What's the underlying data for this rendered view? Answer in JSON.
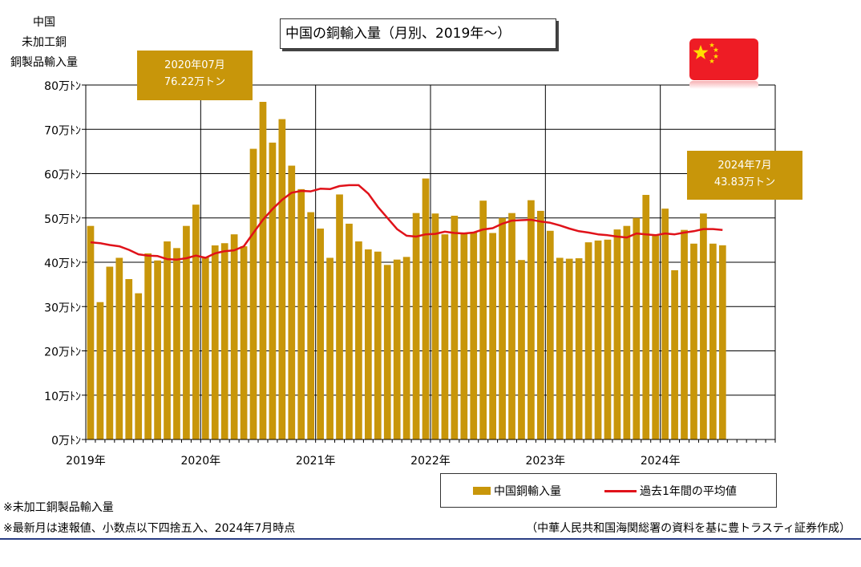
{
  "title": "中国の銅輸入量（月別、2019年～）",
  "ylabel_lines": [
    "中国",
    "未加工銅",
    "銅製品輸入量"
  ],
  "callouts": [
    {
      "line1": "2020年07月",
      "line2": "76.22万トン"
    },
    {
      "line1": "2024年7月",
      "line2": "43.83万トン"
    }
  ],
  "legend": {
    "bar": "中国銅輸入量",
    "line": "過去1年間の平均値"
  },
  "notes": [
    "※未加工銅製品輸入量",
    "※最新月は速報値、小数点以下四捨五入、2024年7月時点"
  ],
  "source": "（中華人民共和国海関総署の資料を基に豊トラスティ証券作成）",
  "colors": {
    "bar": "#c8960a",
    "line": "#e0121a",
    "rule": "#2a3e84",
    "flag_red": "#ee1c25",
    "flag_star": "#ffde00"
  },
  "chart_data": {
    "type": "bar",
    "x_start": "2019-01",
    "months_on_axis": 72,
    "xtick_labels": [
      "2019年",
      "2020年",
      "2021年",
      "2022年",
      "2023年",
      "2024年"
    ],
    "ytick_labels": [
      "0万ﾄﾝ",
      "10万ﾄﾝ",
      "20万ﾄﾝ",
      "30万ﾄﾝ",
      "40万ﾄﾝ",
      "50万ﾄﾝ",
      "60万ﾄﾝ",
      "70万ﾄﾝ",
      "80万ﾄﾝ"
    ],
    "ylim": [
      0,
      80
    ],
    "grid": true,
    "legend_position": "bottom-right",
    "series": [
      {
        "name": "中国銅輸入量",
        "type": "bar",
        "values": [
          48.2,
          31.0,
          39.0,
          41.0,
          36.2,
          33.0,
          42.0,
          40.4,
          44.7,
          43.2,
          48.2,
          53.0,
          41.2,
          43.8,
          44.3,
          46.3,
          43.6,
          65.6,
          76.2,
          67.0,
          72.3,
          61.8,
          56.5,
          51.3,
          47.6,
          41.0,
          55.3,
          48.7,
          44.7,
          42.9,
          42.4,
          39.4,
          40.6,
          41.2,
          51.1,
          58.9,
          51.0,
          46.3,
          50.5,
          46.4,
          46.8,
          53.9,
          46.6,
          50.0,
          51.1,
          40.5,
          54.0,
          51.6,
          47.1,
          41.0,
          40.8,
          40.9,
          44.5,
          44.9,
          45.1,
          47.4,
          48.2,
          50.0,
          55.2,
          46.1,
          52.1,
          38.2,
          47.3,
          44.2,
          51.0,
          44.2,
          43.83
        ]
      },
      {
        "name": "過去1年間の平均値",
        "type": "line",
        "values": [
          44.5,
          44.3,
          43.9,
          43.6,
          42.8,
          41.8,
          41.5,
          41.4,
          40.7,
          40.6,
          40.9,
          41.5,
          41.0,
          42.0,
          42.5,
          42.7,
          43.6,
          46.6,
          49.6,
          52.0,
          54.1,
          55.7,
          56.1,
          56.0,
          56.6,
          56.5,
          57.2,
          57.4,
          57.4,
          55.5,
          52.5,
          50.0,
          47.5,
          46.0,
          45.8,
          46.3,
          46.4,
          46.9,
          46.6,
          46.5,
          46.7,
          47.4,
          47.7,
          48.7,
          49.4,
          49.5,
          49.6,
          49.2,
          48.9,
          48.3,
          47.6,
          47.0,
          46.7,
          46.3,
          46.1,
          45.8,
          45.6,
          46.5,
          46.3,
          46.1,
          46.5,
          46.3,
          46.7,
          47.0,
          47.5,
          47.5,
          47.3
        ]
      }
    ]
  }
}
